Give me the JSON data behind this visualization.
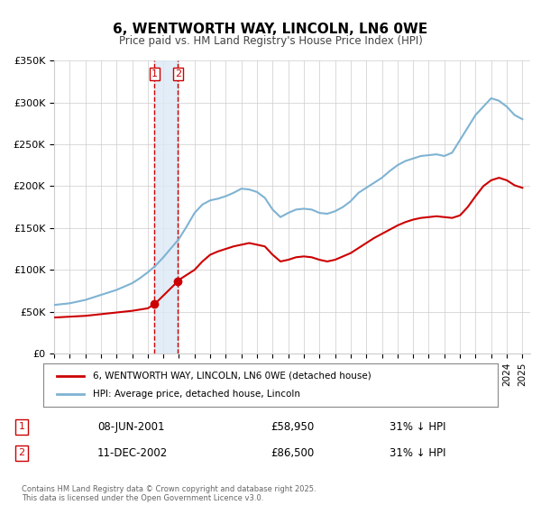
{
  "title": "6, WENTWORTH WAY, LINCOLN, LN6 0WE",
  "subtitle": "Price paid vs. HM Land Registry's House Price Index (HPI)",
  "legend_label_red": "6, WENTWORTH WAY, LINCOLN, LN6 0WE (detached house)",
  "legend_label_blue": "HPI: Average price, detached house, Lincoln",
  "footnote": "Contains HM Land Registry data © Crown copyright and database right 2025.\nThis data is licensed under the Open Government Licence v3.0.",
  "sale1_date": "08-JUN-2001",
  "sale1_price": "£58,950",
  "sale1_hpi": "31% ↓ HPI",
  "sale2_date": "11-DEC-2002",
  "sale2_price": "£86,500",
  "sale2_hpi": "31% ↓ HPI",
  "color_red": "#cc0000",
  "color_blue": "#7fb3d3",
  "color_shade": "#dce9f5",
  "color_grid": "#cccccc",
  "ylim": [
    0,
    350000
  ],
  "yticks": [
    0,
    50000,
    100000,
    150000,
    200000,
    250000,
    300000,
    350000
  ],
  "xlim_start": 1995.0,
  "xlim_end": 2025.5,
  "sale1_x": 2001.44,
  "sale1_y": 58950,
  "sale2_x": 2002.94,
  "sale2_y": 86500,
  "vline1_x": 2001.44,
  "vline2_x": 2002.94,
  "hpi_x": [
    1995.0,
    1995.5,
    1996.0,
    1996.5,
    1997.0,
    1997.5,
    1998.0,
    1998.5,
    1999.0,
    1999.5,
    2000.0,
    2000.5,
    2001.0,
    2001.5,
    2002.0,
    2002.5,
    2003.0,
    2003.5,
    2004.0,
    2004.5,
    2005.0,
    2005.5,
    2006.0,
    2006.5,
    2007.0,
    2007.5,
    2008.0,
    2008.5,
    2009.0,
    2009.5,
    2010.0,
    2010.5,
    2011.0,
    2011.5,
    2012.0,
    2012.5,
    2013.0,
    2013.5,
    2014.0,
    2014.5,
    2015.0,
    2015.5,
    2016.0,
    2016.5,
    2017.0,
    2017.5,
    2018.0,
    2018.5,
    2019.0,
    2019.5,
    2020.0,
    2020.5,
    2021.0,
    2021.5,
    2022.0,
    2022.5,
    2023.0,
    2023.5,
    2024.0,
    2024.5,
    2025.0
  ],
  "hpi_y": [
    58000,
    59000,
    60000,
    62000,
    64000,
    67000,
    70000,
    73000,
    76000,
    80000,
    84000,
    90000,
    97000,
    105000,
    115000,
    126000,
    137000,
    152000,
    168000,
    178000,
    183000,
    185000,
    188000,
    192000,
    197000,
    196000,
    193000,
    186000,
    172000,
    163000,
    168000,
    172000,
    173000,
    172000,
    168000,
    167000,
    170000,
    175000,
    182000,
    192000,
    198000,
    204000,
    210000,
    218000,
    225000,
    230000,
    233000,
    236000,
    237000,
    238000,
    236000,
    240000,
    255000,
    270000,
    285000,
    295000,
    305000,
    302000,
    295000,
    285000,
    280000
  ],
  "red_x": [
    1995.0,
    1995.5,
    1996.0,
    1996.5,
    1997.0,
    1997.5,
    1998.0,
    1998.5,
    1999.0,
    1999.5,
    2000.0,
    2000.5,
    2001.0,
    2001.44,
    2002.94,
    2003.0,
    2003.5,
    2004.0,
    2004.5,
    2005.0,
    2005.5,
    2006.0,
    2006.5,
    2007.0,
    2007.5,
    2008.0,
    2008.5,
    2009.0,
    2009.5,
    2010.0,
    2010.5,
    2011.0,
    2011.5,
    2012.0,
    2012.5,
    2013.0,
    2013.5,
    2014.0,
    2014.5,
    2015.0,
    2015.5,
    2016.0,
    2016.5,
    2017.0,
    2017.5,
    2018.0,
    2018.5,
    2019.0,
    2019.5,
    2020.0,
    2020.5,
    2021.0,
    2021.5,
    2022.0,
    2022.5,
    2023.0,
    2023.5,
    2024.0,
    2024.5,
    2025.0
  ],
  "red_y": [
    43000,
    43500,
    44000,
    44500,
    45000,
    46000,
    47000,
    48000,
    49000,
    50000,
    51000,
    52500,
    54000,
    58950,
    86500,
    88000,
    94000,
    100000,
    110000,
    118000,
    122000,
    125000,
    128000,
    130000,
    132000,
    130000,
    128000,
    118000,
    110000,
    112000,
    115000,
    116000,
    115000,
    112000,
    110000,
    112000,
    116000,
    120000,
    126000,
    132000,
    138000,
    143000,
    148000,
    153000,
    157000,
    160000,
    162000,
    163000,
    164000,
    163000,
    162000,
    165000,
    175000,
    188000,
    200000,
    207000,
    210000,
    207000,
    201000,
    198000
  ]
}
